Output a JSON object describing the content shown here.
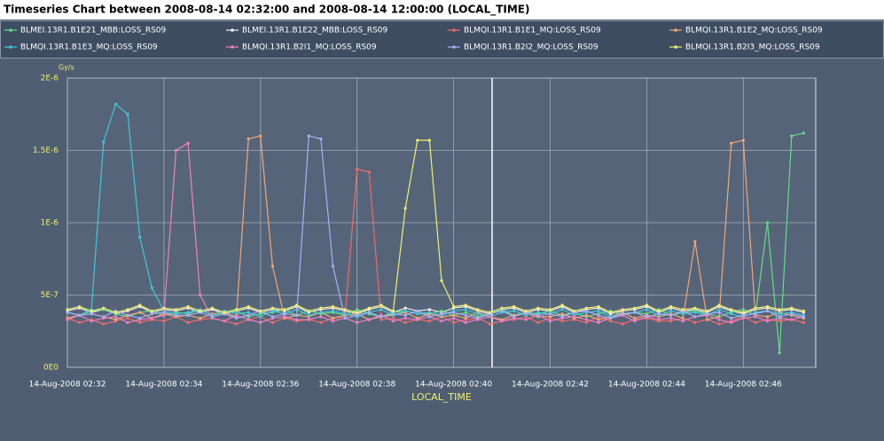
{
  "chart_data": {
    "type": "line",
    "title": "Timeseries Chart between 2008-08-14 02:32:00 and 2008-08-14 12:00:00 (LOCAL_TIME)",
    "y_axis_label": "Gy/s",
    "x_axis_label": "LOCAL_TIME",
    "grid": true,
    "xlim": [
      "2008-08-14 02:32:00",
      "2008-08-14 02:47:30"
    ],
    "xticks": [
      {
        "value": "2008-08-14 02:32:00",
        "label": "14-Aug-2008 02:32"
      },
      {
        "value": "2008-08-14 02:34:00",
        "label": "14-Aug-2008 02:34"
      },
      {
        "value": "2008-08-14 02:36:00",
        "label": "14-Aug-2008 02:36"
      },
      {
        "value": "2008-08-14 02:38:00",
        "label": "14-Aug-2008 02:38"
      },
      {
        "value": "2008-08-14 02:40:00",
        "label": "14-Aug-2008 02:40"
      },
      {
        "value": "2008-08-14 02:42:00",
        "label": "14-Aug-2008 02:42"
      },
      {
        "value": "2008-08-14 02:44:00",
        "label": "14-Aug-2008 02:44"
      },
      {
        "value": "2008-08-14 02:46:00",
        "label": "14-Aug-2008 02:46"
      }
    ],
    "ylim": [
      0,
      2e-06
    ],
    "yticks": [
      {
        "value": 0,
        "label": "0E0"
      },
      {
        "value": 5e-07,
        "label": "5E-7"
      },
      {
        "value": 1e-06,
        "label": "1E-6"
      },
      {
        "value": 1.5e-06,
        "label": "1.5E-6"
      },
      {
        "value": 2e-06,
        "label": "2E-6"
      }
    ],
    "x": [
      "2008-08-14 02:32:00",
      "2008-08-14 02:32:15",
      "2008-08-14 02:32:30",
      "2008-08-14 02:32:45",
      "2008-08-14 02:33:00",
      "2008-08-14 02:33:15",
      "2008-08-14 02:33:30",
      "2008-08-14 02:33:45",
      "2008-08-14 02:34:00",
      "2008-08-14 02:34:15",
      "2008-08-14 02:34:30",
      "2008-08-14 02:34:45",
      "2008-08-14 02:35:00",
      "2008-08-14 02:35:15",
      "2008-08-14 02:35:30",
      "2008-08-14 02:35:45",
      "2008-08-14 02:36:00",
      "2008-08-14 02:36:15",
      "2008-08-14 02:36:30",
      "2008-08-14 02:36:45",
      "2008-08-14 02:37:00",
      "2008-08-14 02:37:15",
      "2008-08-14 02:37:30",
      "2008-08-14 02:37:45",
      "2008-08-14 02:38:00",
      "2008-08-14 02:38:15",
      "2008-08-14 02:38:30",
      "2008-08-14 02:38:45",
      "2008-08-14 02:39:00",
      "2008-08-14 02:39:15",
      "2008-08-14 02:39:30",
      "2008-08-14 02:39:45",
      "2008-08-14 02:40:00",
      "2008-08-14 02:40:15",
      "2008-08-14 02:40:30",
      "2008-08-14 02:40:45",
      "2008-08-14 02:41:00",
      "2008-08-14 02:41:15",
      "2008-08-14 02:41:30",
      "2008-08-14 02:41:45",
      "2008-08-14 02:42:00",
      "2008-08-14 02:42:15",
      "2008-08-14 02:42:30",
      "2008-08-14 02:42:45",
      "2008-08-14 02:43:00",
      "2008-08-14 02:43:15",
      "2008-08-14 02:43:30",
      "2008-08-14 02:43:45",
      "2008-08-14 02:44:00",
      "2008-08-14 02:44:15",
      "2008-08-14 02:44:30",
      "2008-08-14 02:44:45",
      "2008-08-14 02:45:00",
      "2008-08-14 02:45:15",
      "2008-08-14 02:45:30",
      "2008-08-14 02:45:45",
      "2008-08-14 02:46:00",
      "2008-08-14 02:46:15",
      "2008-08-14 02:46:30",
      "2008-08-14 02:46:45",
      "2008-08-14 02:47:00",
      "2008-08-14 02:47:15"
    ],
    "series": [
      {
        "name": "BLMEI.13R1.B1E21_MBB:LOSS_RS09",
        "color": "#66dd88",
        "values": [
          3.8e-07,
          3.6e-07,
          3.9e-07,
          4e-07,
          3.7e-07,
          3.5e-07,
          3.8e-07,
          3.9e-07,
          3.6e-07,
          3.8e-07,
          3.7e-07,
          4e-07,
          3.6e-07,
          3.8e-07,
          3.9e-07,
          3.5e-07,
          3.7e-07,
          3.8e-07,
          4e-07,
          3.6e-07,
          3.9e-07,
          3.7e-07,
          3.8e-07,
          3.6e-07,
          4e-07,
          3.7e-07,
          3.5e-07,
          3.8e-07,
          3.9e-07,
          3.7e-07,
          3.7e-07,
          3.9e-07,
          3.6e-07,
          3.8e-07,
          3.5e-07,
          3.7e-07,
          4e-07,
          3.6e-07,
          3.8e-07,
          3.7e-07,
          3.9e-07,
          3.6e-07,
          3.8e-07,
          3.5e-07,
          3.7e-07,
          3.9e-07,
          3.6e-07,
          3.8e-07,
          3.7e-07,
          4e-07,
          3.6e-07,
          3.8e-07,
          3.9e-07,
          3.7e-07,
          3.5e-07,
          3.8e-07,
          4e-07,
          3.6e-07,
          1e-06,
          1e-07,
          1.6e-06,
          1.62e-06
        ]
      },
      {
        "name": "BLMEI.13R1.B1E22_MBB:LOSS_RS09",
        "color": "#f0f0f0",
        "values": [
          3.9e-07,
          4.1e-07,
          3.8e-07,
          4e-07,
          3.7e-07,
          3.9e-07,
          4.2e-07,
          3.8e-07,
          4e-07,
          3.9e-07,
          4.1e-07,
          3.8e-07,
          4e-07,
          3.7e-07,
          3.9e-07,
          4.1e-07,
          3.8e-07,
          4e-07,
          3.9e-07,
          4.2e-07,
          3.8e-07,
          4e-07,
          4.1e-07,
          3.9e-07,
          3.7e-07,
          4e-07,
          4.2e-07,
          3.8e-07,
          4.1e-07,
          3.9e-07,
          4e-07,
          3.8e-07,
          4.1e-07,
          4.2e-07,
          3.9e-07,
          3.7e-07,
          4e-07,
          4.1e-07,
          3.8e-07,
          4e-07,
          3.9e-07,
          4.2e-07,
          3.8e-07,
          4e-07,
          4.1e-07,
          3.7e-07,
          3.9e-07,
          4e-07,
          4.2e-07,
          3.8e-07,
          4.1e-07,
          3.9e-07,
          4e-07,
          3.8e-07,
          4.2e-07,
          3.9e-07,
          3.7e-07,
          4e-07,
          4.1e-07,
          3.9e-07,
          4e-07,
          3.8e-07
        ]
      },
      {
        "name": "BLMQI.13R1.B1E1_MQ:LOSS_RS09",
        "color": "#f06a6a",
        "values": [
          3.4e-07,
          3.1e-07,
          3.3e-07,
          3e-07,
          3.2e-07,
          3.4e-07,
          3.1e-07,
          3.3e-07,
          3.2e-07,
          3.5e-07,
          3.1e-07,
          3.3e-07,
          3.4e-07,
          3.2e-07,
          3e-07,
          3.3e-07,
          3.5e-07,
          3.1e-07,
          3.4e-07,
          3.2e-07,
          3.3e-07,
          3.1e-07,
          3.4e-07,
          3.5e-07,
          1.37e-06,
          1.35e-06,
          3.3e-07,
          3.4e-07,
          3.1e-07,
          3.3e-07,
          3.2e-07,
          3.5e-07,
          3.1e-07,
          3.3e-07,
          3.4e-07,
          3e-07,
          3.2e-07,
          3.3e-07,
          3.5e-07,
          3.1e-07,
          3.4e-07,
          3.2e-07,
          3.3e-07,
          3.1e-07,
          3.5e-07,
          3.2e-07,
          3e-07,
          3.3e-07,
          3.4e-07,
          3.2e-07,
          3.2e-07,
          3.4e-07,
          3.1e-07,
          3.3e-07,
          3e-07,
          3.2e-07,
          3.5e-07,
          3.1e-07,
          3.3e-07,
          3.2e-07,
          3.3e-07,
          3.1e-07
        ]
      },
      {
        "name": "BLMQI.13R1.B1E2_MQ:LOSS_RS09",
        "color": "#f0a878",
        "values": [
          3.4e-07,
          3.6e-07,
          3.7e-07,
          3.5e-07,
          3.3e-07,
          3.6e-07,
          3.8e-07,
          3.4e-07,
          3.7e-07,
          3.5e-07,
          3.6e-07,
          3.4e-07,
          3.7e-07,
          3.8e-07,
          3.5e-07,
          1.58e-06,
          1.6e-06,
          7e-07,
          3.4e-07,
          3.6e-07,
          3.5e-07,
          3.8e-07,
          3.4e-07,
          3.6e-07,
          3.7e-07,
          3.3e-07,
          3.5e-07,
          3.6e-07,
          3.8e-07,
          3.4e-07,
          3.7e-07,
          3.5e-07,
          3.6e-07,
          3.4e-07,
          3.8e-07,
          3.5e-07,
          3.3e-07,
          3.6e-07,
          3.7e-07,
          3.5e-07,
          3.5e-07,
          3.7e-07,
          3.4e-07,
          3.6e-07,
          3.3e-07,
          3.5e-07,
          3.8e-07,
          3.4e-07,
          3.6e-07,
          3.5e-07,
          3.7e-07,
          3.4e-07,
          8.7e-07,
          3.3e-07,
          3.5e-07,
          1.55e-06,
          1.57e-06,
          3.6e-07,
          3.5e-07,
          3.8e-07,
          3.6e-07,
          3.4e-07
        ]
      },
      {
        "name": "BLMQI.13R1.B1E3_MQ:LOSS_RS09",
        "color": "#40c8d8",
        "values": [
          3.8e-07,
          3.6e-07,
          4e-07,
          1.56e-06,
          1.82e-06,
          1.75e-06,
          9e-07,
          5.5e-07,
          3.9e-07,
          3.7e-07,
          3.8e-07,
          4e-07,
          3.6e-07,
          3.9e-07,
          3.7e-07,
          3.8e-07,
          3.5e-07,
          3.9e-07,
          3.7e-07,
          4e-07,
          3.6e-07,
          3.8e-07,
          3.9e-07,
          3.7e-07,
          3.5e-07,
          3.8e-07,
          4e-07,
          3.6e-07,
          3.9e-07,
          3.7e-07,
          3.8e-07,
          3.6e-07,
          3.9e-07,
          4e-07,
          3.7e-07,
          3.5e-07,
          3.8e-07,
          3.9e-07,
          3.6e-07,
          3.8e-07,
          3.7e-07,
          4e-07,
          3.6e-07,
          3.8e-07,
          3.9e-07,
          3.5e-07,
          3.7e-07,
          3.8e-07,
          4e-07,
          3.6e-07,
          3.9e-07,
          3.7e-07,
          3.8e-07,
          3.6e-07,
          4e-07,
          3.7e-07,
          3.5e-07,
          3.8e-07,
          3.9e-07,
          3.7e-07,
          3.8e-07,
          3.6e-07
        ]
      },
      {
        "name": "BLMQI.13R1.B2I1_MQ:LOSS_RS09",
        "color": "#f080c0",
        "values": [
          3.3e-07,
          3.6e-07,
          3.2e-07,
          3.4e-07,
          3.5e-07,
          3.1e-07,
          3.3e-07,
          3.4e-07,
          3.6e-07,
          1.5e-06,
          1.55e-06,
          5e-07,
          3.4e-07,
          3.2e-07,
          3.6e-07,
          3.3e-07,
          3.1e-07,
          3.4e-07,
          3.5e-07,
          3.3e-07,
          3.3e-07,
          3.5e-07,
          3.2e-07,
          3.4e-07,
          3.1e-07,
          3.3e-07,
          3.6e-07,
          3.2e-07,
          3.4e-07,
          3.3e-07,
          3.5e-07,
          3.2e-07,
          3.4e-07,
          3.1e-07,
          3.3e-07,
          3.5e-07,
          3.2e-07,
          3.4e-07,
          3.3e-07,
          3.6e-07,
          3.2e-07,
          3.4e-07,
          3.5e-07,
          3.3e-07,
          3.1e-07,
          3.4e-07,
          3.6e-07,
          3.2e-07,
          3.5e-07,
          3.3e-07,
          3.4e-07,
          3.2e-07,
          3.5e-07,
          3.6e-07,
          3.3e-07,
          3.1e-07,
          3.4e-07,
          3.5e-07,
          3.2e-07,
          3.4e-07,
          3.3e-07,
          3.5e-07
        ]
      },
      {
        "name": "BLMQI.13R1.B2I2_MQ:LOSS_RS09",
        "color": "#a8b0f8",
        "values": [
          3.8e-07,
          3.6e-07,
          3.7e-07,
          3.5e-07,
          3.9e-07,
          3.6e-07,
          3.4e-07,
          3.7e-07,
          3.8e-07,
          3.6e-07,
          3.6e-07,
          3.8e-07,
          3.5e-07,
          3.7e-07,
          3.4e-07,
          3.6e-07,
          3.9e-07,
          3.5e-07,
          3.7e-07,
          3.6e-07,
          1.6e-06,
          1.58e-06,
          7e-07,
          3.4e-07,
          3.6e-07,
          3.8e-07,
          3.5e-07,
          3.7e-07,
          3.6e-07,
          3.9e-07,
          3.5e-07,
          3.7e-07,
          3.8e-07,
          3.6e-07,
          3.4e-07,
          3.7e-07,
          3.9e-07,
          3.5e-07,
          3.8e-07,
          3.6e-07,
          3.7e-07,
          3.5e-07,
          3.8e-07,
          3.9e-07,
          3.6e-07,
          3.4e-07,
          3.7e-07,
          3.8e-07,
          3.5e-07,
          3.7e-07,
          3.6e-07,
          3.9e-07,
          3.5e-07,
          3.7e-07,
          3.8e-07,
          3.4e-07,
          3.6e-07,
          3.7e-07,
          3.9e-07,
          3.5e-07,
          3.7e-07,
          3.5e-07
        ]
      },
      {
        "name": "BLMQI.13R1.B2I3_MQ:LOSS_RS09",
        "color": "#f0f070",
        "values": [
          4e-07,
          4.2e-07,
          3.9e-07,
          4.1e-07,
          3.8e-07,
          4e-07,
          4.3e-07,
          3.9e-07,
          4.1e-07,
          4e-07,
          4.2e-07,
          3.9e-07,
          4.1e-07,
          3.8e-07,
          4e-07,
          4.2e-07,
          3.9e-07,
          4.1e-07,
          4e-07,
          4.3e-07,
          3.9e-07,
          4.1e-07,
          4.2e-07,
          4e-07,
          3.8e-07,
          4.1e-07,
          4.3e-07,
          3.9e-07,
          1.1e-06,
          1.57e-06,
          1.57e-06,
          6e-07,
          4.2e-07,
          4.3e-07,
          4e-07,
          3.8e-07,
          4.1e-07,
          4.2e-07,
          3.9e-07,
          4.1e-07,
          4e-07,
          4.3e-07,
          3.9e-07,
          4.1e-07,
          4.2e-07,
          3.8e-07,
          4e-07,
          4.1e-07,
          4.3e-07,
          3.9e-07,
          4.2e-07,
          4e-07,
          4.1e-07,
          3.9e-07,
          4.3e-07,
          4e-07,
          3.8e-07,
          4.1e-07,
          4.2e-07,
          4e-07,
          4.1e-07,
          3.9e-07
        ]
      }
    ]
  }
}
